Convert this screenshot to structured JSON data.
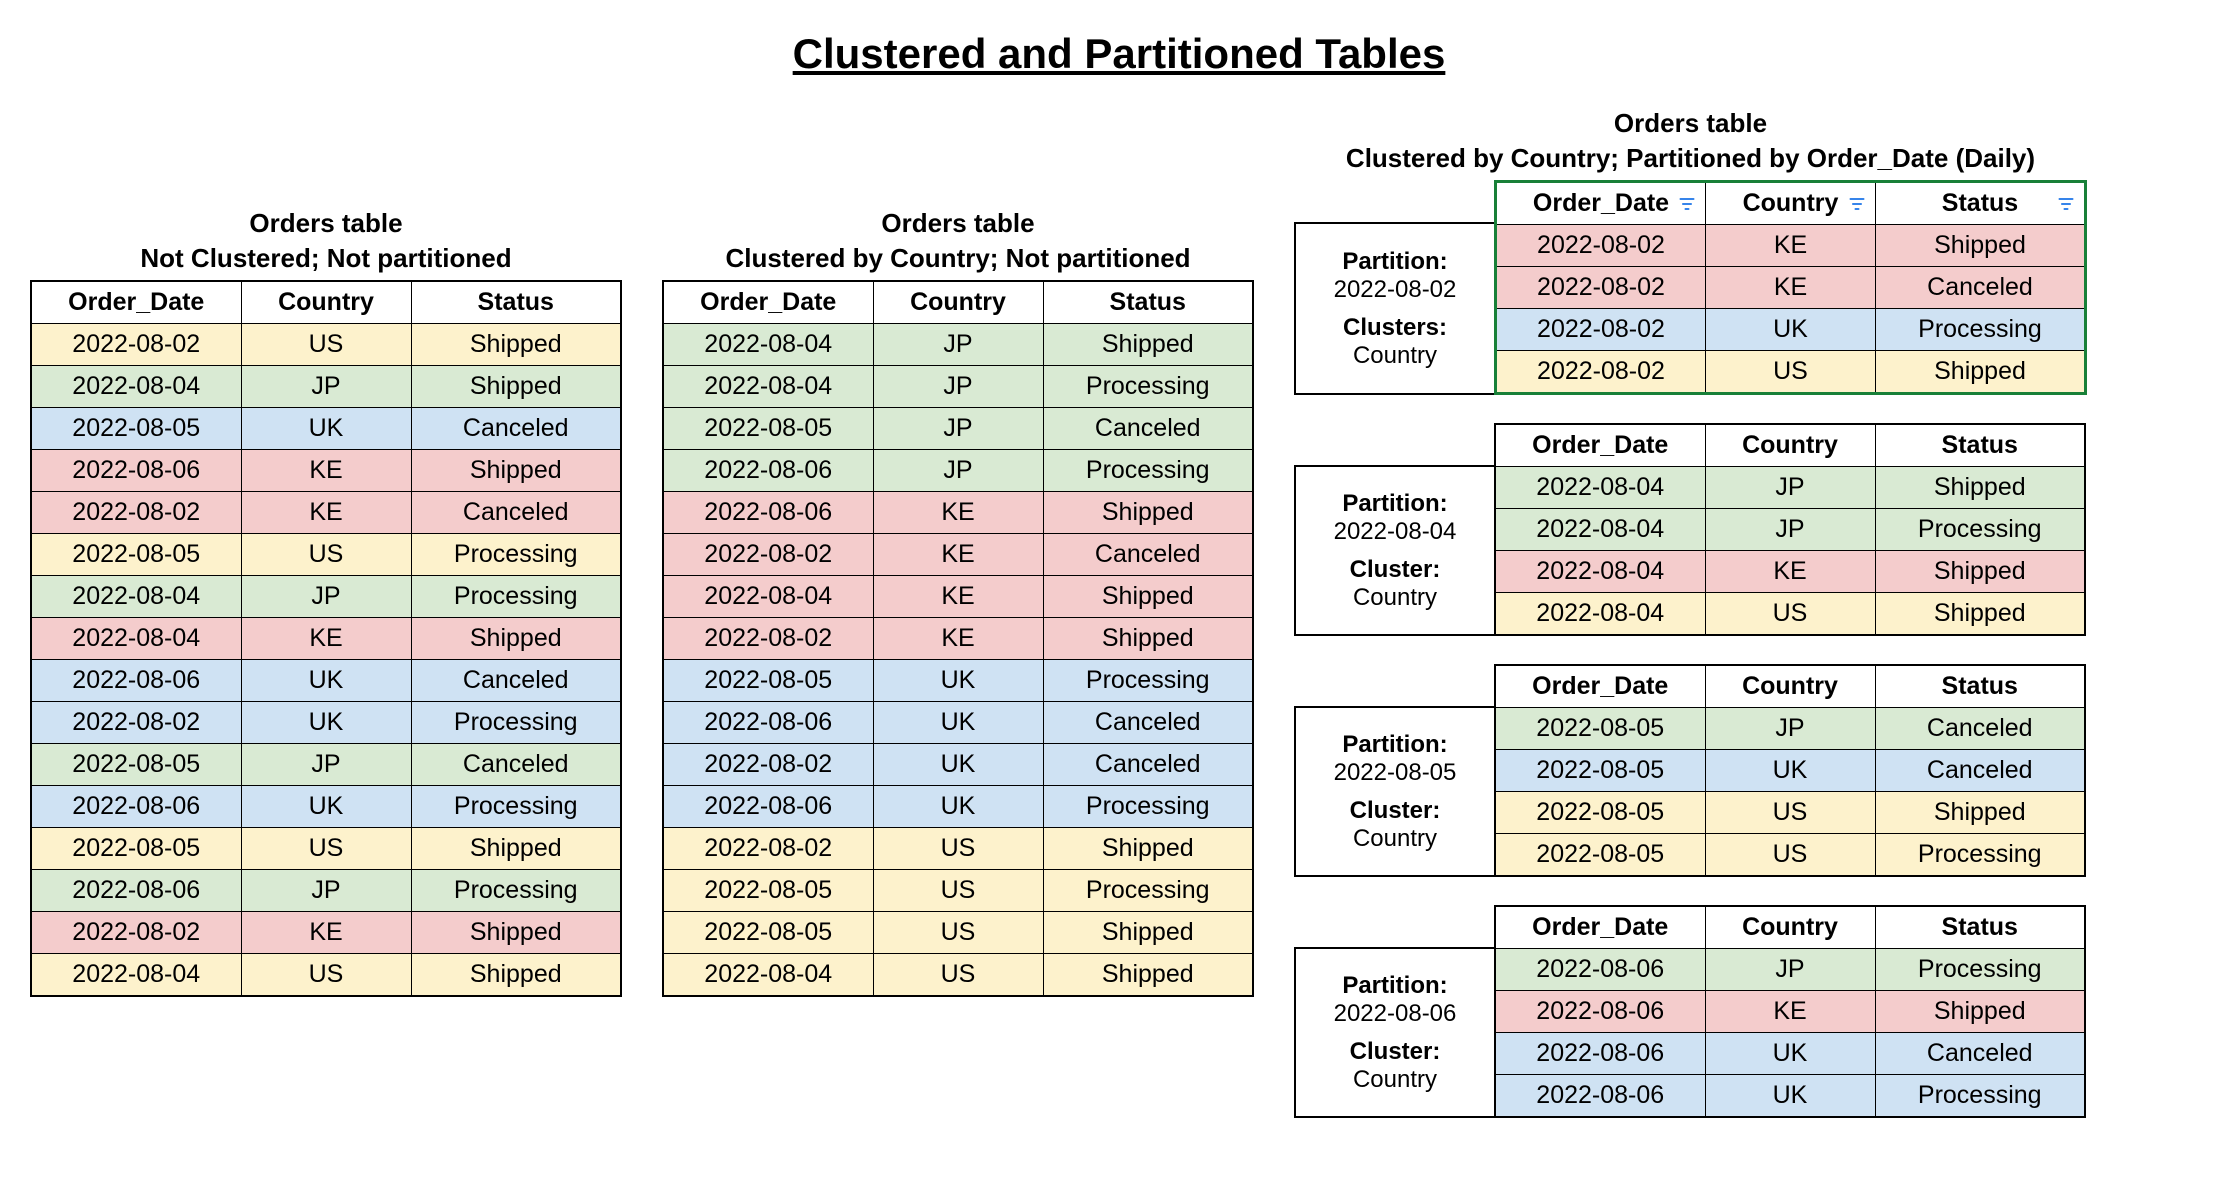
{
  "page_title": "Clustered and Partitioned Tables",
  "row_colors": {
    "US": "#fdf2cc",
    "JP": "#d9ead3",
    "UK": "#cfe2f3",
    "KE": "#f4cccc"
  },
  "columns": [
    "Order_Date",
    "Country",
    "Status"
  ],
  "table1": {
    "title": "Orders table",
    "subtitle": "Not Clustered; Not partitioned",
    "rows": [
      [
        "2022-08-02",
        "US",
        "Shipped"
      ],
      [
        "2022-08-04",
        "JP",
        "Shipped"
      ],
      [
        "2022-08-05",
        "UK",
        "Canceled"
      ],
      [
        "2022-08-06",
        "KE",
        "Shipped"
      ],
      [
        "2022-08-02",
        "KE",
        "Canceled"
      ],
      [
        "2022-08-05",
        "US",
        "Processing"
      ],
      [
        "2022-08-04",
        "JP",
        "Processing"
      ],
      [
        "2022-08-04",
        "KE",
        "Shipped"
      ],
      [
        "2022-08-06",
        "UK",
        "Canceled"
      ],
      [
        "2022-08-02",
        "UK",
        "Processing"
      ],
      [
        "2022-08-05",
        "JP",
        "Canceled"
      ],
      [
        "2022-08-06",
        "UK",
        "Processing"
      ],
      [
        "2022-08-05",
        "US",
        "Shipped"
      ],
      [
        "2022-08-06",
        "JP",
        "Processing"
      ],
      [
        "2022-08-02",
        "KE",
        "Shipped"
      ],
      [
        "2022-08-04",
        "US",
        "Shipped"
      ]
    ]
  },
  "table2": {
    "title": "Orders table",
    "subtitle": "Clustered by Country; Not partitioned",
    "rows": [
      [
        "2022-08-04",
        "JP",
        "Shipped"
      ],
      [
        "2022-08-04",
        "JP",
        "Processing"
      ],
      [
        "2022-08-05",
        "JP",
        "Canceled"
      ],
      [
        "2022-08-06",
        "JP",
        "Processing"
      ],
      [
        "2022-08-06",
        "KE",
        "Shipped"
      ],
      [
        "2022-08-02",
        "KE",
        "Canceled"
      ],
      [
        "2022-08-04",
        "KE",
        "Shipped"
      ],
      [
        "2022-08-02",
        "KE",
        "Shipped"
      ],
      [
        "2022-08-05",
        "UK",
        "Processing"
      ],
      [
        "2022-08-06",
        "UK",
        "Canceled"
      ],
      [
        "2022-08-02",
        "UK",
        "Canceled"
      ],
      [
        "2022-08-06",
        "UK",
        "Processing"
      ],
      [
        "2022-08-02",
        "US",
        "Shipped"
      ],
      [
        "2022-08-05",
        "US",
        "Processing"
      ],
      [
        "2022-08-05",
        "US",
        "Shipped"
      ],
      [
        "2022-08-04",
        "US",
        "Shipped"
      ]
    ]
  },
  "table3": {
    "title": "Orders table",
    "subtitle": "Clustered by Country; Partitioned by Order_Date (Daily)",
    "filter_icons": true,
    "partitions": [
      {
        "partition_label": "Partition:",
        "partition_value": "2022-08-02",
        "cluster_label": "Clusters:",
        "cluster_value": "Country",
        "show_header": true,
        "highlight_border": true,
        "rows": [
          [
            "2022-08-02",
            "KE",
            "Shipped"
          ],
          [
            "2022-08-02",
            "KE",
            "Canceled"
          ],
          [
            "2022-08-02",
            "UK",
            "Processing"
          ],
          [
            "2022-08-02",
            "US",
            "Shipped"
          ]
        ]
      },
      {
        "partition_label": "Partition:",
        "partition_value": "2022-08-04",
        "cluster_label": "Cluster:",
        "cluster_value": "Country",
        "show_header": true,
        "highlight_border": false,
        "rows": [
          [
            "2022-08-04",
            "JP",
            "Shipped"
          ],
          [
            "2022-08-04",
            "JP",
            "Processing"
          ],
          [
            "2022-08-04",
            "KE",
            "Shipped"
          ],
          [
            "2022-08-04",
            "US",
            "Shipped"
          ]
        ]
      },
      {
        "partition_label": "Partition:",
        "partition_value": "2022-08-05",
        "cluster_label": "Cluster:",
        "cluster_value": "Country",
        "show_header": true,
        "highlight_border": false,
        "rows": [
          [
            "2022-08-05",
            "JP",
            "Canceled"
          ],
          [
            "2022-08-05",
            "UK",
            "Canceled"
          ],
          [
            "2022-08-05",
            "US",
            "Shipped"
          ],
          [
            "2022-08-05",
            "US",
            "Processing"
          ]
        ]
      },
      {
        "partition_label": "Partition:",
        "partition_value": "2022-08-06",
        "cluster_label": "Cluster:",
        "cluster_value": "Country",
        "show_header": true,
        "highlight_border": false,
        "rows": [
          [
            "2022-08-06",
            "JP",
            "Processing"
          ],
          [
            "2022-08-06",
            "KE",
            "Shipped"
          ],
          [
            "2022-08-06",
            "UK",
            "Canceled"
          ],
          [
            "2022-08-06",
            "UK",
            "Processing"
          ]
        ]
      }
    ]
  }
}
